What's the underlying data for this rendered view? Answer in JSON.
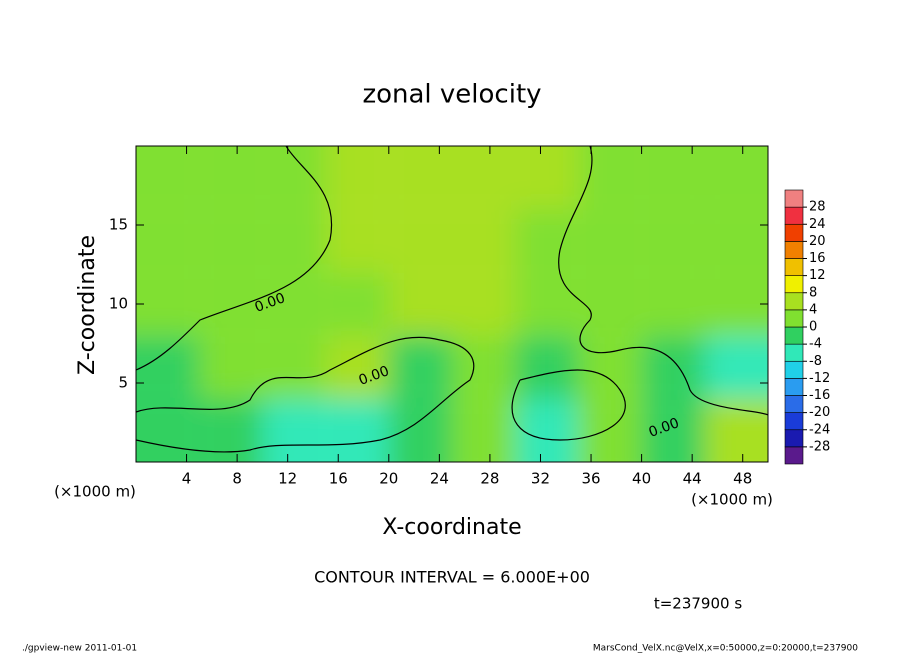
{
  "chart_data": {
    "type": "heatmap",
    "title": "zonal velocity",
    "x_label": "X-coordinate",
    "y_label": "Z-coordinate",
    "x_unit": "(×1000 m)",
    "y_unit": "(×1000 m)",
    "xlim": [
      0,
      50
    ],
    "ylim": [
      0,
      20
    ],
    "xticks": [
      4,
      8,
      12,
      16,
      20,
      24,
      28,
      32,
      36,
      40,
      44,
      48
    ],
    "yticks": [
      5,
      10,
      15
    ],
    "xbins": [
      0,
      5,
      10,
      15,
      20,
      25,
      30,
      35,
      40,
      45,
      50
    ],
    "ybins": [
      0,
      4,
      8,
      12,
      16,
      20
    ],
    "z": [
      [
        -1,
        -4,
        -6,
        -6,
        -3,
        0,
        -5,
        3,
        -2,
        6
      ],
      [
        -2,
        0,
        2,
        4,
        -3,
        1,
        -2,
        2,
        -1,
        -6
      ],
      [
        1,
        2,
        1,
        3,
        4,
        4,
        2,
        1,
        1,
        1
      ],
      [
        2,
        2,
        3,
        5,
        5,
        5,
        3,
        2,
        2,
        2
      ],
      [
        2,
        2,
        3,
        4,
        5,
        5,
        4,
        3,
        2,
        2
      ]
    ],
    "colorbar": {
      "ticks": [
        -28,
        -24,
        -20,
        -16,
        -12,
        -8,
        -4,
        0,
        4,
        8,
        12,
        16,
        20,
        24,
        28
      ],
      "colors": [
        "#5a1a8c",
        "#1a1ab0",
        "#1a3cd8",
        "#2a6ce8",
        "#2a9cf0",
        "#20d0e8",
        "#30e8b8",
        "#30d060",
        "#80e030",
        "#a8e020",
        "#f0f000",
        "#f0c000",
        "#f08000",
        "#f04000",
        "#f03040",
        "#f08080"
      ]
    },
    "contour_labels": [
      "0.00",
      "0.00",
      "0.00"
    ],
    "contour_interval": "CONTOUR INTERVAL = 6.000E+00",
    "time_label": "t=237900 s",
    "footer_left": "./gpview-new   2011-01-01",
    "footer_right": "MarsCond_VelX.nc@VelX,x=0:50000,z=0:20000,t=237900"
  }
}
